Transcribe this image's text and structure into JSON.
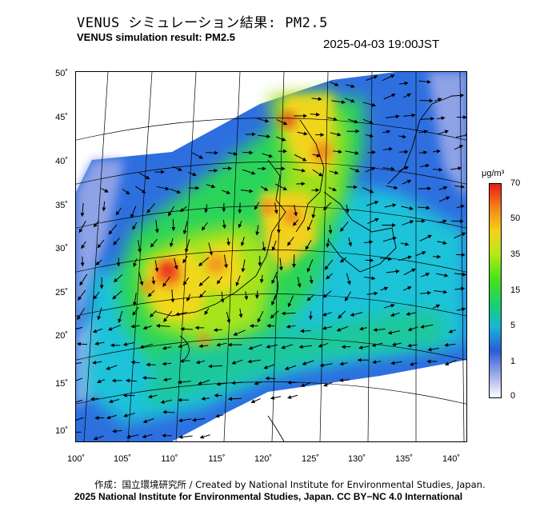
{
  "header": {
    "title_ja": "VENUS シミュレーション結果: PM2.5",
    "title_en": "VENUS simulation result: PM2.5",
    "timestamp": "2025-04-03 19:00JST"
  },
  "map": {
    "lat_labels": [
      "50˚",
      "45˚",
      "40˚",
      "35˚",
      "30˚",
      "25˚",
      "20˚",
      "15˚",
      "10˚"
    ],
    "lon_labels": [
      "100˚",
      "105˚",
      "110˚",
      "115˚",
      "120˚",
      "125˚",
      "130˚",
      "135˚",
      "140˚"
    ],
    "lat_range": [
      10,
      50
    ],
    "lon_range": [
      100,
      140
    ],
    "pollutant": "PM2.5"
  },
  "colorbar": {
    "unit": "μg/m³",
    "ticks": [
      "70",
      "50",
      "35",
      "15",
      "5",
      "1",
      "0"
    ],
    "colors": [
      "#ffffff",
      "#9aa7e6",
      "#2a5bd6",
      "#19b4d8",
      "#1cd16a",
      "#4be21a",
      "#b5e81a",
      "#f4d21a",
      "#f4831a",
      "#e81a1a"
    ]
  },
  "footer": {
    "credit": "作成：国立環境研究所 / Created by National Institute for Environmental Studies, Japan.",
    "license": "2025 National Institute for Environmental Studies, Japan. CC BY−NC 4.0 International"
  }
}
